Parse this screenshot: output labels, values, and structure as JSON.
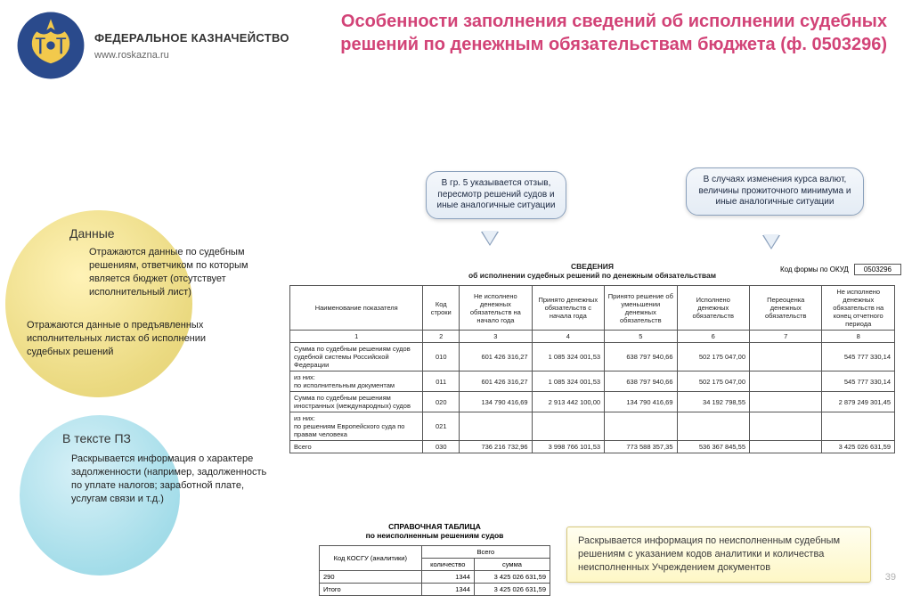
{
  "header": {
    "org_name": "ФЕДЕРАЛЬНОЕ КАЗНАЧЕЙСТВО",
    "org_url": "www.roskazna.ru",
    "title": "Особенности заполнения сведений об исполнении судебных решений по денежным обязательствам бюджета (ф. 0503296)"
  },
  "bubbles": {
    "data_label": "Данные",
    "data_text1": "Отражаются данные по судебным решениям, ответчиком по которым является бюджет (отсутствует исполнительный лист)",
    "data_text2": "Отражаются данные о предъявленных исполнительных листах об исполнении судебных решений",
    "pz_label": "В тексте ПЗ",
    "pz_text": "Раскрывается информация о характере задолженности (например, задолженность по уплате налогов; заработной плате, услугам связи и т.д.)"
  },
  "callouts": {
    "c1": "В гр. 5 указывается отзыв, пересмотр решений судов и иные аналогичные ситуации",
    "c2": "В случаях изменения курса валют, величины прожиточного минимума и иные аналогичные ситуации"
  },
  "info_box": "Раскрывается информация по неисполненным судебным решениям с указанием кодов аналитики  и количества неисполненных Учреждением документов",
  "form": {
    "code_label": "Код формы по ОКУД",
    "code": "0503296",
    "main_title": "СВЕДЕНИЯ\nоб исполнении судебных решений по денежным обязательствам"
  },
  "table": {
    "headers": [
      "Наименование показателя",
      "Код строки",
      "Не исполнено денежных обязательств на начало года",
      "Принято денежных обязательств с начала года",
      "Принято решение об уменьшении денежных обязательств",
      "Исполнено денежных обязательств",
      "Переоценка денежных обязательств",
      "Не исполнено денежных обязательств на конец отчетного периода"
    ],
    "numrow": [
      "1",
      "2",
      "3",
      "4",
      "5",
      "6",
      "7",
      "8"
    ],
    "rows": [
      {
        "name": "Сумма по судебным решениям судов судебной системы Российской Федерации",
        "code": "010",
        "v": [
          "601 426 316,27",
          "1 085 324 001,53",
          "638 797 940,66",
          "502 175 047,00",
          "",
          "545 777 330,14"
        ]
      },
      {
        "name": "из них:\n  по исполнительным документам",
        "code": "011",
        "v": [
          "601 426 316,27",
          "1 085 324 001,53",
          "638 797 940,66",
          "502 175 047,00",
          "",
          "545 777 330,14"
        ]
      },
      {
        "name": "Сумма по судебным решениям иностранных (международных) судов",
        "code": "020",
        "v": [
          "134 790 416,69",
          "2 913 442 100,00",
          "134 790 416,69",
          "34 192 798,55",
          "",
          "2 879 249 301,45"
        ]
      },
      {
        "name": "из них:\n  по решениям Европейского суда по правам человека",
        "code": "021",
        "v": [
          "",
          "",
          "",
          "",
          "",
          ""
        ]
      },
      {
        "name": "Всего",
        "code": "030",
        "v": [
          "736 216 732,96",
          "3 998 766 101,53",
          "773 588 357,35",
          "536 367 845,55",
          "",
          "3 425 026 631,59"
        ]
      }
    ]
  },
  "ref_table": {
    "title": "СПРАВОЧНАЯ ТАБЛИЦА\nпо неисполненным решениям судов",
    "headers": [
      "Код КОСГУ (аналитики)",
      "количество",
      "сумма"
    ],
    "group_header": "Всего",
    "rows": [
      {
        "code": "290",
        "qty": "1344",
        "sum": "3 425 026 631,59"
      },
      {
        "code": "Итого",
        "qty": "1344",
        "sum": "3 425 026 631,59"
      }
    ]
  },
  "page_number": "39"
}
